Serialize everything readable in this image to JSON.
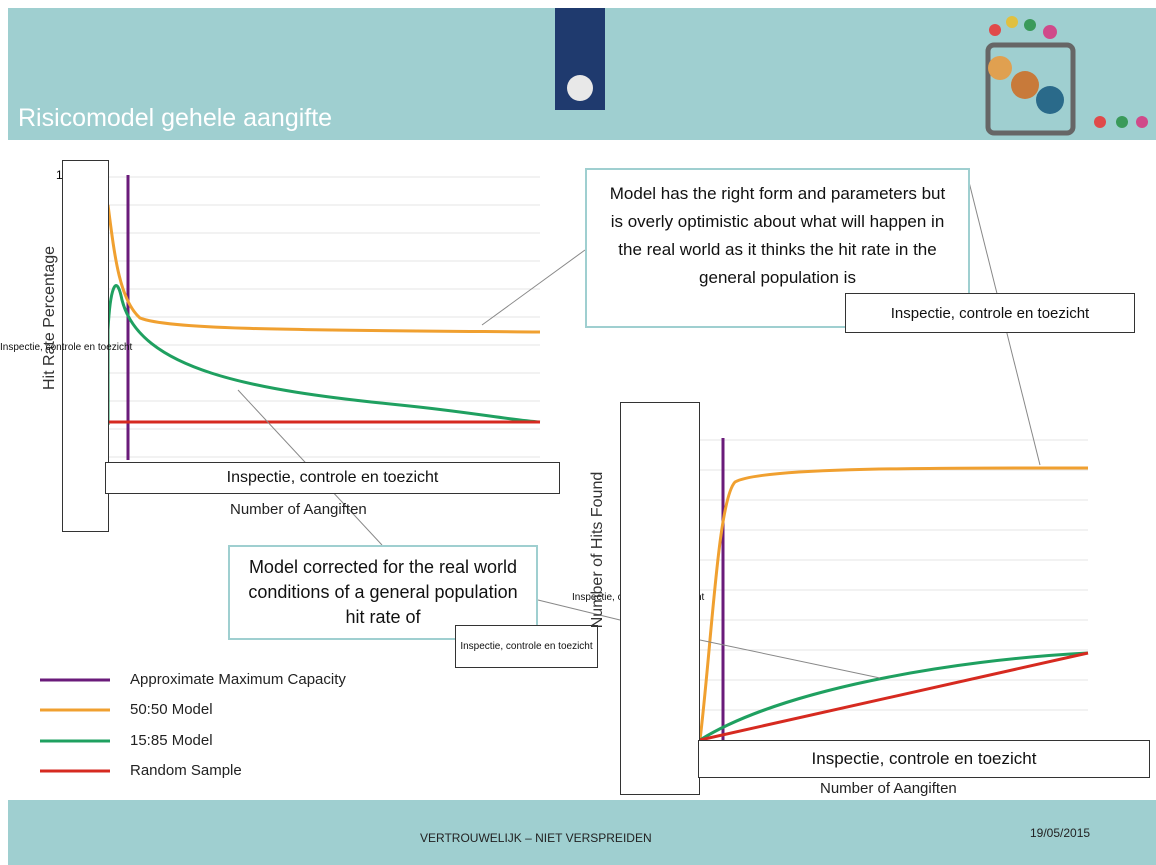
{
  "header": {
    "title": "Risicomodel gehele aangifte"
  },
  "left_chart": {
    "y_label": "Hit Rate Percentage",
    "y_tick": 1,
    "x_label": "Number of Aangiften"
  },
  "right_chart": {
    "y_label": "Number of Hits Found",
    "x_label": "Number of Aangiften"
  },
  "callouts": [
    "Model has the right form and parameters but is overly optimistic about what will happen in the real world as it thinks the hit rate in the general population is",
    "Model corrected for the real world conditions of a general population hit rate of"
  ],
  "legend": [
    "Approximate Maximum Capacity",
    "50:50 Model",
    "15:85 Model",
    "Random Sample"
  ],
  "overlays": [
    "Inspectie, controle en toezicht",
    "Inspectie, controle en toezicht",
    "Inspectie, controle en toezicht",
    "Inspectie, controle en toezicht",
    "Inspectie, controle en toezicht",
    "Inspectie, controle en toezicht"
  ],
  "footer": {
    "notice": "VERTROUWELIJK – NIET VERSPREIDEN",
    "date": "19/05/2015"
  }
}
